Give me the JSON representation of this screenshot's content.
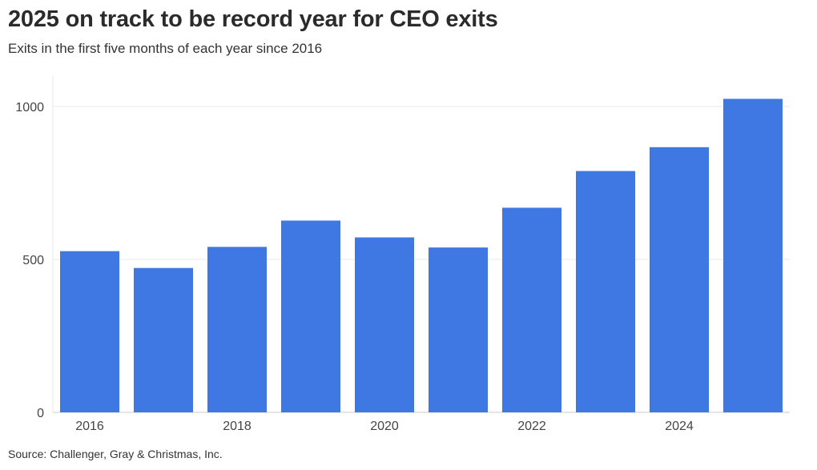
{
  "title": "2025 on track to be record year for CEO exits",
  "subtitle": "Exits in the first five months of each year since 2016",
  "source": "Source: Challenger, Gray & Christmas, Inc.",
  "colors": {
    "bar": "#3f78e3",
    "grid": "#e8e8e8",
    "axis": "#cccccc"
  },
  "chart_data": {
    "type": "bar",
    "categories": [
      "2016",
      "2017",
      "2018",
      "2019",
      "2020",
      "2021",
      "2022",
      "2023",
      "2024",
      "2025"
    ],
    "values": [
      527,
      472,
      541,
      627,
      572,
      539,
      669,
      789,
      867,
      1025
    ],
    "x_tick_labels": [
      "2016",
      "2018",
      "2020",
      "2022",
      "2024"
    ],
    "y_ticks": [
      0,
      500,
      1000
    ],
    "ylim": [
      0,
      1100
    ],
    "xlabel": "",
    "ylabel": "",
    "grid": true,
    "legend": false
  }
}
